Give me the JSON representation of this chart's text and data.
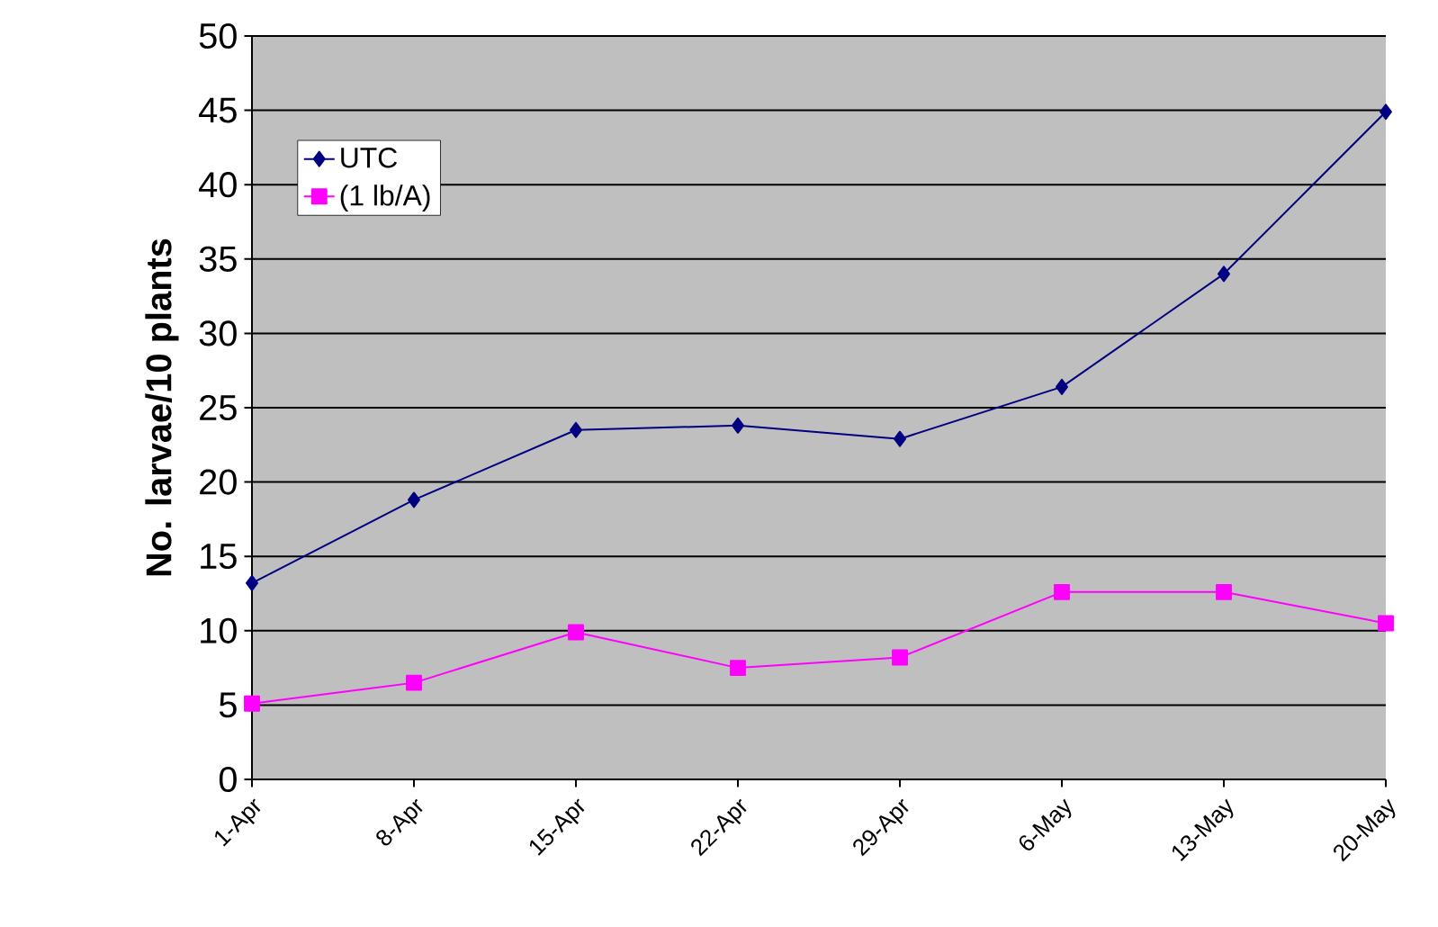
{
  "chart_data": {
    "type": "line",
    "ylabel": "No. larvae/10 plants",
    "categories": [
      "1-Apr",
      "8-Apr",
      "15-Apr",
      "22-Apr",
      "29-Apr",
      "6-May",
      "13-May",
      "20-May"
    ],
    "series": [
      {
        "name": "UTC",
        "color": "#000080",
        "marker": "diamond",
        "values": [
          13.2,
          18.8,
          23.5,
          23.8,
          22.9,
          26.4,
          34.0,
          44.9
        ]
      },
      {
        "name": "(1 lb/A)",
        "color": "#ff00ff",
        "marker": "square",
        "values": [
          5.1,
          6.5,
          9.9,
          7.5,
          8.2,
          12.6,
          12.6,
          10.5
        ]
      }
    ],
    "ylim": [
      0,
      50
    ],
    "yticks": [
      0,
      5,
      10,
      15,
      20,
      25,
      30,
      35,
      40,
      45,
      50
    ],
    "grid": "y",
    "legend": "top left"
  }
}
